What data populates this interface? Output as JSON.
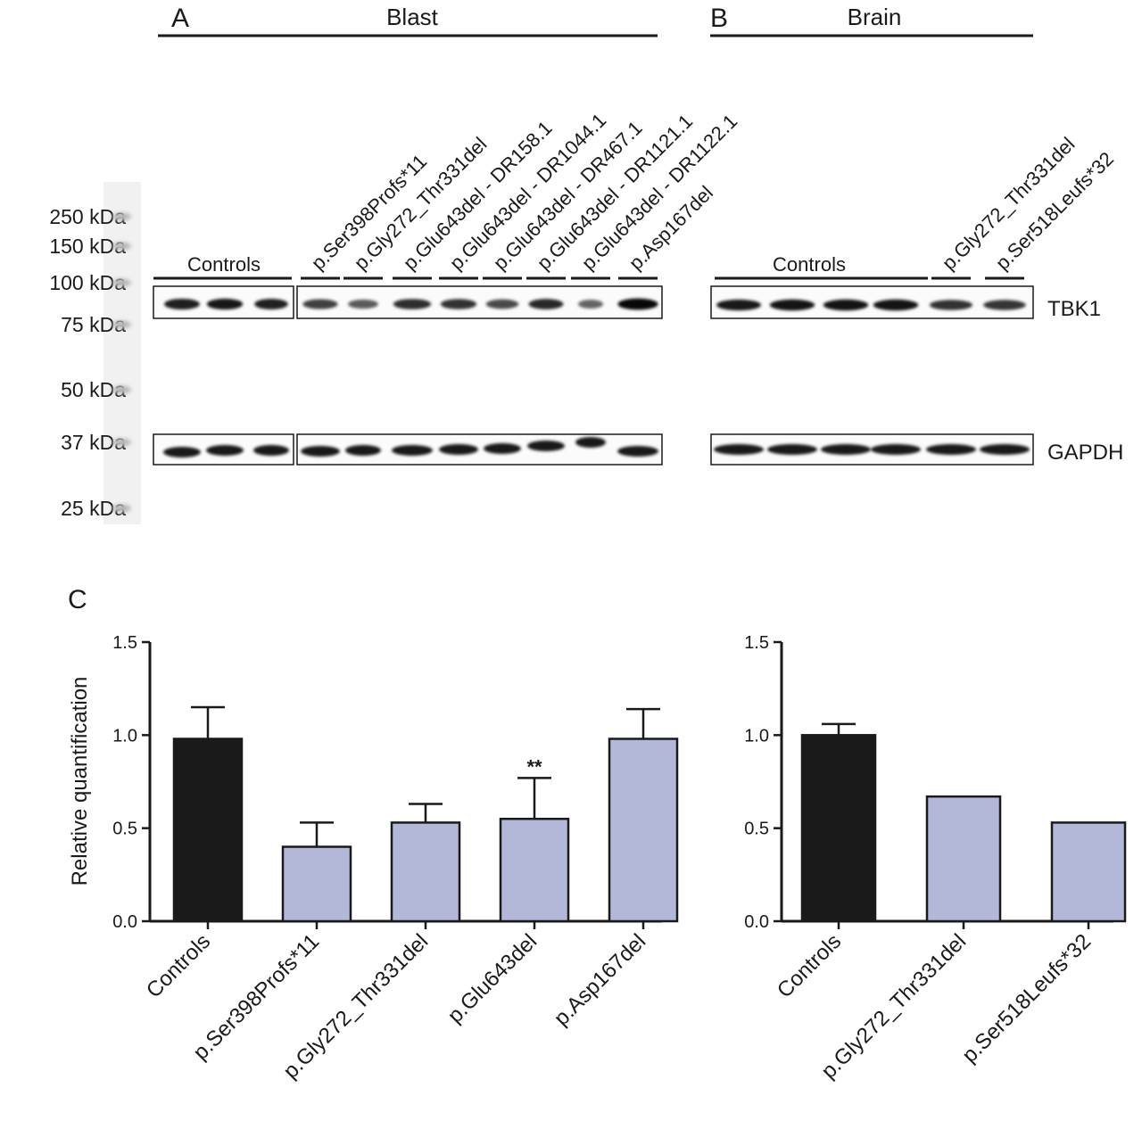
{
  "panels": {
    "a": {
      "letter": "A",
      "title": "Blast"
    },
    "b": {
      "letter": "B",
      "title": "Brain"
    },
    "c": {
      "letter": "C"
    }
  },
  "ladder": [
    "250 kDa",
    "150 kDa",
    "100 kDa",
    "75 kDa",
    "50 kDa",
    "37 kDa",
    "25 kDa"
  ],
  "blot_labels": {
    "tbk1": "TBK1",
    "gapdh": "GAPDH"
  },
  "blast_lanes": {
    "group_label": "Controls",
    "samples": [
      "p.Ser398Profs*11",
      "p.Gly272_Thr331del",
      "p.Glu643del - DR158.1",
      "p.Glu643del - DR1044.1",
      "p.Glu643del - DR467.1",
      "p.Glu643del - DR1121.1",
      "p.Glu643del - DR1122.1",
      "p.Asp167del"
    ],
    "tbk1_intensity": [
      0.82,
      0.86,
      0.8,
      0.62,
      0.45,
      0.72,
      0.7,
      0.55,
      0.75,
      0.38,
      0.95
    ],
    "gapdh_intensity": [
      0.9,
      0.9,
      0.9,
      0.9,
      0.9,
      0.9,
      0.9,
      0.9,
      0.9,
      0.9,
      0.9
    ]
  },
  "brain_lanes": {
    "group_label": "Controls",
    "samples": [
      "p.Gly272_Thr331del",
      "p.Ser518Leufs*32"
    ],
    "tbk1_intensity": [
      0.85,
      0.88,
      0.88,
      0.88,
      0.7,
      0.68
    ],
    "gapdh_intensity": [
      0.9,
      0.9,
      0.9,
      0.9,
      0.9,
      0.9
    ]
  },
  "colors": {
    "control_bar": "#1a1a1a",
    "mutant_bar": "#b3b8d8",
    "axis": "#1a1a1a"
  },
  "chart_data": [
    {
      "type": "bar",
      "categories": [
        "Controls",
        "p.Ser398Profs*11",
        "p.Gly272_Thr331del",
        "p.Glu643del",
        "p.Asp167del"
      ],
      "values": [
        0.98,
        0.4,
        0.53,
        0.55,
        0.98
      ],
      "error": [
        0.17,
        0.13,
        0.1,
        0.22,
        0.16
      ],
      "annotations": [
        "",
        "",
        "",
        "**",
        ""
      ],
      "ylabel": "Relative quantification",
      "ylim": [
        0,
        1.5
      ],
      "yticks": [
        "0.0",
        "0.5",
        "1.0",
        "1.5"
      ],
      "grid": false
    },
    {
      "type": "bar",
      "categories": [
        "Controls",
        "p.Gly272_Thr331del",
        "p.Ser518Leufs*32"
      ],
      "values": [
        1.0,
        0.67,
        0.53
      ],
      "error": [
        0.06,
        0,
        0
      ],
      "ylabel": "",
      "ylim": [
        0,
        1.5
      ],
      "yticks": [
        "0.0",
        "0.5",
        "1.0",
        "1.5"
      ],
      "grid": false
    }
  ]
}
